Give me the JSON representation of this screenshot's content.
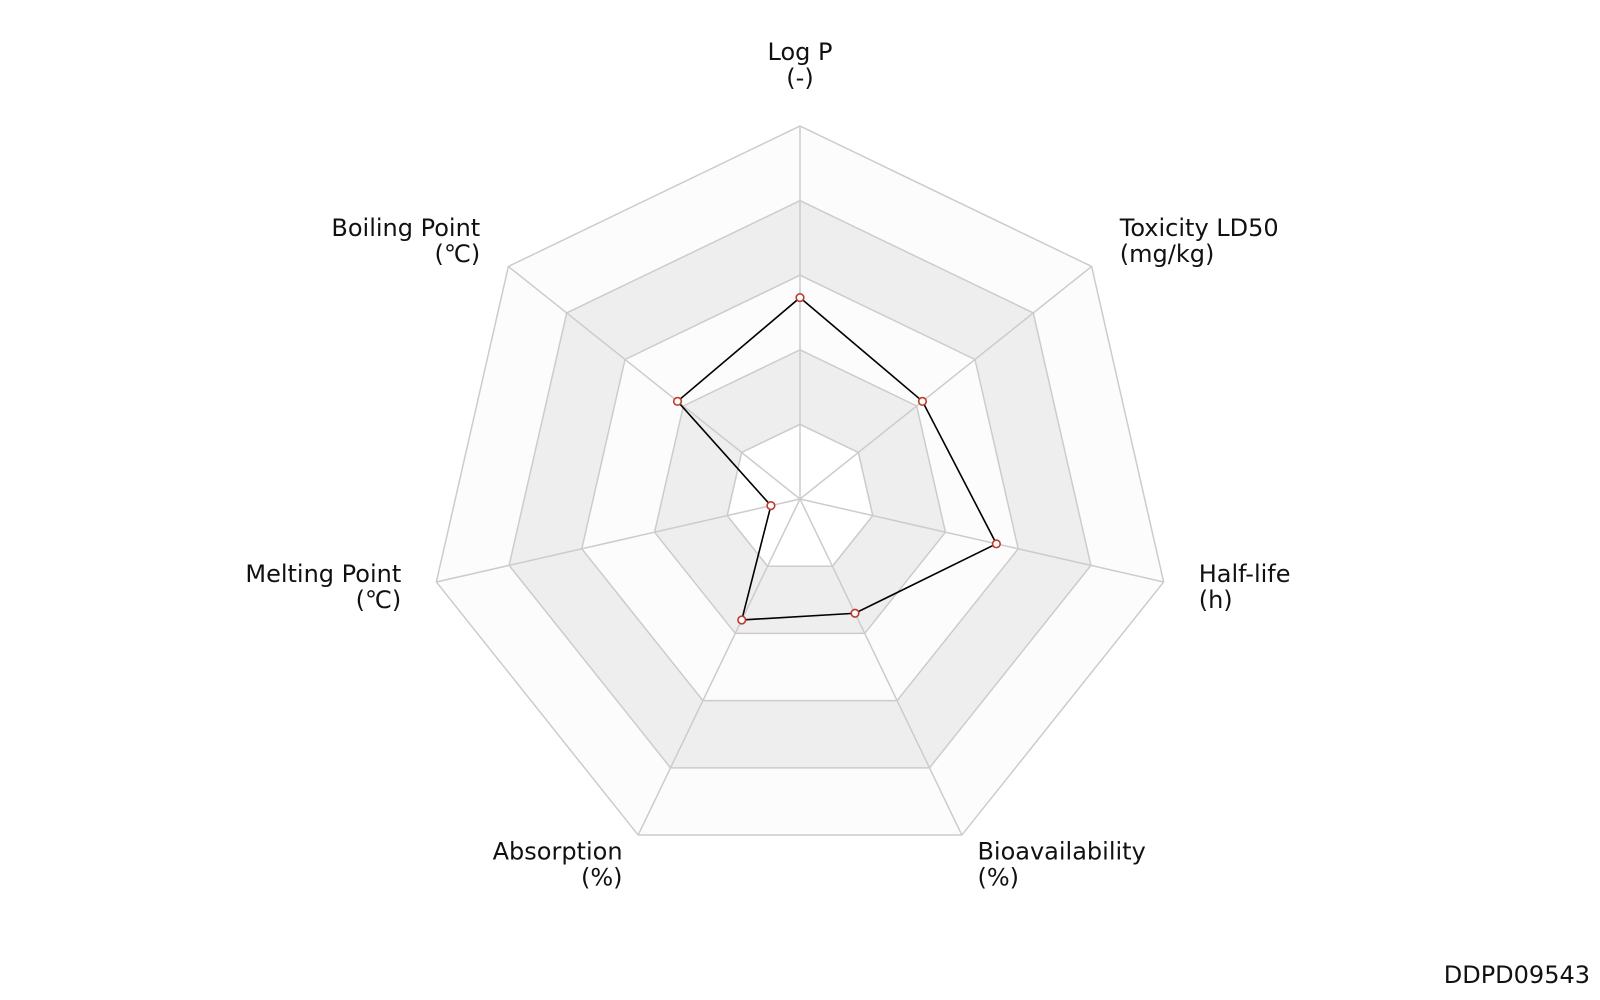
{
  "chart_data": {
    "type": "radar",
    "categories": [
      "Log P",
      "Toxicity LD50",
      "Half-life",
      "Bioavailability",
      "Absorption",
      "Melting Point",
      "Boiling Point"
    ],
    "units": [
      "(-)",
      "(mg/kg)",
      "(h)",
      "(%)",
      "(%)",
      "(℃)",
      "(℃)"
    ],
    "values": [
      2.7,
      2.1,
      2.7,
      1.7,
      1.8,
      0.4,
      2.1
    ],
    "rlim": [
      0,
      5
    ],
    "rticks": [
      1,
      2,
      3,
      4,
      5
    ],
    "line_color": "#000000",
    "marker_color": "#c0392b",
    "band_colors": [
      "#ffffff",
      "#eeeeee"
    ],
    "footer": "DDPD09543"
  }
}
